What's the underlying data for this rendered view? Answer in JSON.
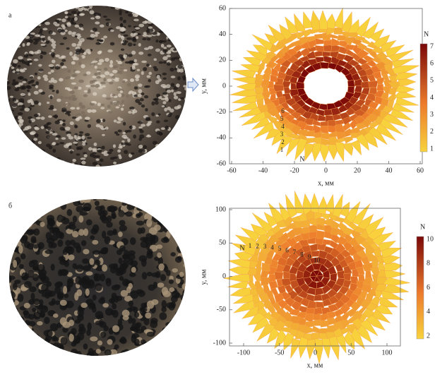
{
  "figure": {
    "panels": [
      {
        "label": "а",
        "x_label": "x, мм",
        "y_label": "y, мм",
        "x_ticks": [
          -60,
          -40,
          -20,
          0,
          20,
          40,
          60
        ],
        "y_ticks": [
          60,
          40,
          20,
          0,
          -20,
          -40,
          -60
        ],
        "colorbar_title": "N",
        "colorbar_ticks": [
          7,
          6,
          5,
          4,
          3,
          2,
          1
        ],
        "ring_marker": "N",
        "ring_numbers": [
          "1",
          "2",
          "3",
          "4",
          "5",
          "6"
        ]
      },
      {
        "label": "б",
        "x_label": "x, мм",
        "y_label": "y, мм",
        "x_ticks": [
          -100,
          -50,
          0,
          50,
          100
        ],
        "y_ticks": [
          100,
          50,
          0,
          -50,
          -100
        ],
        "colorbar_title": "N",
        "colorbar_ticks": [
          10,
          8,
          6,
          4,
          2
        ],
        "ring_marker": "N",
        "ring_numbers": [
          "1",
          "2",
          "3",
          "4",
          "5",
          "6",
          "7",
          "8",
          "9",
          "10"
        ]
      }
    ]
  }
}
